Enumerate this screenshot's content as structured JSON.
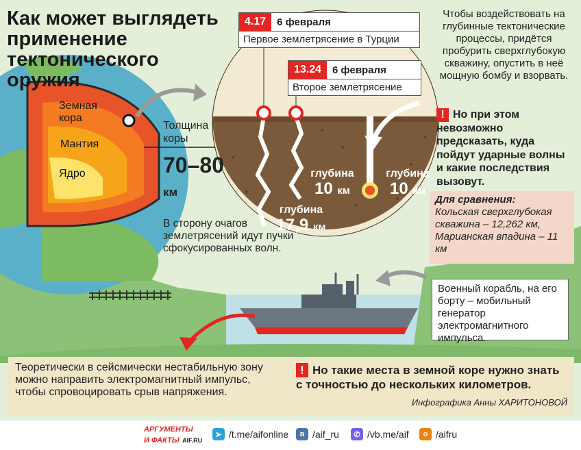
{
  "title": "Как может выглядеть применение тектонического оружия",
  "earth": {
    "layer_crust": "Земная кора",
    "layer_mantle": "Мантия",
    "layer_core": "Ядро"
  },
  "crust": {
    "label": "Толщина коры",
    "value": "70–80",
    "unit": "км"
  },
  "waves_text": "В сторону очагов землетрясений идут пучки сфокусированных волн.",
  "quakes": [
    {
      "time": "4.17",
      "date": "6 февраля",
      "label": "Первое землетрясение в Турции"
    },
    {
      "time": "13.24",
      "date": "6 февраля",
      "label": "Второе землетрясение"
    }
  ],
  "depths": [
    {
      "label": "глубина",
      "value": "17,9",
      "unit": "км"
    },
    {
      "label": "глубина",
      "value": "10",
      "unit": "км"
    },
    {
      "label": "глубина",
      "value": "10",
      "unit": "км"
    }
  ],
  "info_right": "Чтобы воздействовать на глубинные тектонические процессы, придётся пробурить сверхглубокую скважину, опустить в неё мощную бомбу и взорвать.",
  "warn_right": "Но при этом невозможно предсказать, куда пойдут ударные волны и какие последствия вызовут.",
  "warn_mark": "!",
  "compare": {
    "heading": "Для сравнения:",
    "text": "Кольская сверхглубокая скважина – 12,262 км, Марианская впадина – 11 км"
  },
  "ship_text": "Военный корабль, на его борту – мобильный генератор электромагнитного импульса.",
  "bottom_left": "Теоретически в сейсмически нестабильную зону можно направить электромагнитный импульс, чтобы спровоцировать срыв напряжения.",
  "bottom_warn": "Но такие места в земной коре нужно знать с точностью до нескольких километров.",
  "credit": "Инфографика Анны ХАРИТОНОВОЙ",
  "footer": {
    "logo_line1": "АРГУМЕНТЫ",
    "logo_line2": "И ФАКТЫ",
    "logo_site": "AIF.RU",
    "telegram": "/t.me/aifonline",
    "vk": "/aif_ru",
    "viber": "/vb.me/aif",
    "ok": "/aifru"
  },
  "colors": {
    "accent": "#e52521",
    "soil": "#7a5a3a",
    "crust": "#e8542a",
    "mantle": "#f6a51a",
    "core": "#fde36b",
    "sea": "#bfe0e6",
    "compare_bg": "#f5d7c9"
  }
}
